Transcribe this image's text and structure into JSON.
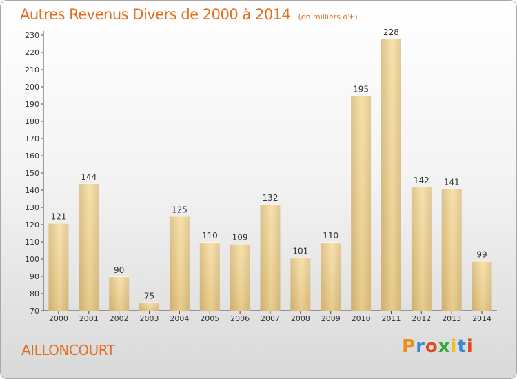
{
  "title": "Autres Revenus Divers de 2000 à 2014",
  "subtitle": "(en milliers d'€)",
  "commune": "AILLONCOURT",
  "logo": {
    "text": "Proxiti",
    "letters": [
      "P",
      "r",
      "o",
      "x",
      "i",
      "t",
      "i"
    ],
    "colors": [
      "#f08a18",
      "#3a8ad8",
      "#e04a1a",
      "#3aa838",
      "#f0c018",
      "#3a8ad8",
      "#e04a1a"
    ]
  },
  "colors": {
    "accent": "#e07020",
    "bar_light": "#f6dc9c",
    "bar_dark": "#c8aa6a"
  },
  "chart_data": {
    "type": "bar",
    "categories": [
      "2000",
      "2001",
      "2002",
      "2003",
      "2004",
      "2005",
      "2006",
      "2007",
      "2008",
      "2009",
      "2010",
      "2011",
      "2012",
      "2013",
      "2014"
    ],
    "values": [
      121,
      144,
      90,
      75,
      125,
      110,
      109,
      132,
      101,
      110,
      195,
      228,
      142,
      141,
      99
    ],
    "ylim": [
      70,
      230
    ],
    "yticks": [
      70,
      80,
      90,
      100,
      110,
      120,
      130,
      140,
      150,
      160,
      170,
      180,
      190,
      200,
      210,
      220,
      230
    ],
    "grid": false,
    "xlabel": "",
    "ylabel": ""
  }
}
